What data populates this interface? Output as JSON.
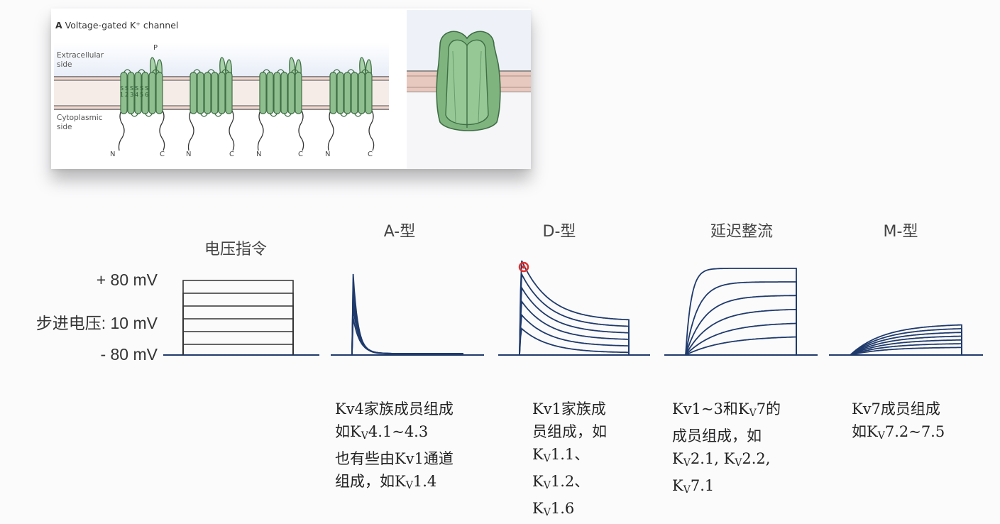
{
  "panel": {
    "letter": "A",
    "title": "Voltage-gated K⁺ channel",
    "extracellular_line1": "Extracellular",
    "extracellular_line2": "side",
    "cytoplasmic_line1": "Cytoplasmic",
    "cytoplasmic_line2": "side",
    "p_label": "P",
    "n_label": "N",
    "c_label": "C",
    "segment_top": "S S S S S S",
    "segment_bottom": "1 2 3 4 5 6"
  },
  "colors": {
    "trace": "#1f3a6b",
    "membrane_line": "#6b6b6b",
    "membrane_fill": "#f2d8cf",
    "helix_fill": "#8fbf8f",
    "helix_stroke": "#3f6e45",
    "highlight": "#e0302c"
  },
  "command": {
    "title": "电压指令",
    "top_label": "+ 80 mV",
    "step_label": "步进电压: 10 mV",
    "bottom_label": "- 80 mV"
  },
  "currents": [
    {
      "title": "A-型",
      "lines": [
        [
          {
            "t": "Kv4家族成员组成"
          }
        ],
        [
          {
            "t": "如K"
          },
          {
            "sub": "V"
          },
          {
            "t": "4.1~4.3"
          }
        ],
        [
          {
            "t": "也有些由Kv1通道"
          }
        ],
        [
          {
            "t": "组成，如K"
          },
          {
            "sub": "V"
          },
          {
            "t": "1.4"
          }
        ]
      ]
    },
    {
      "title": "D-型",
      "lines": [
        [
          {
            "t": "Kv1家族成"
          }
        ],
        [
          {
            "t": "员组成，如"
          }
        ],
        [
          {
            "t": "K"
          },
          {
            "sub": "V"
          },
          {
            "t": "1.1、"
          }
        ],
        [
          {
            "t": "K"
          },
          {
            "sub": "V"
          },
          {
            "t": "1.2、"
          }
        ],
        [
          {
            "t": "K"
          },
          {
            "sub": "V"
          },
          {
            "t": "1.6"
          }
        ]
      ]
    },
    {
      "title": "延迟整流",
      "lines": [
        [
          {
            "t": "Kv1~3和K"
          },
          {
            "sub": "V"
          },
          {
            "t": "7的"
          }
        ],
        [
          {
            "t": "成员组成，如"
          }
        ],
        [
          {
            "t": "K"
          },
          {
            "sub": "V"
          },
          {
            "t": "2.1, K"
          },
          {
            "sub": "V"
          },
          {
            "t": "2.2,"
          }
        ],
        [
          {
            "t": "K"
          },
          {
            "sub": "V"
          },
          {
            "t": "7.1"
          }
        ]
      ]
    },
    {
      "title": "M-型",
      "lines": [
        [
          {
            "t": "Kv7成员组成"
          }
        ],
        [
          {
            "t": "如K"
          },
          {
            "sub": "V"
          },
          {
            "t": "7.2~7.5"
          }
        ]
      ]
    }
  ]
}
